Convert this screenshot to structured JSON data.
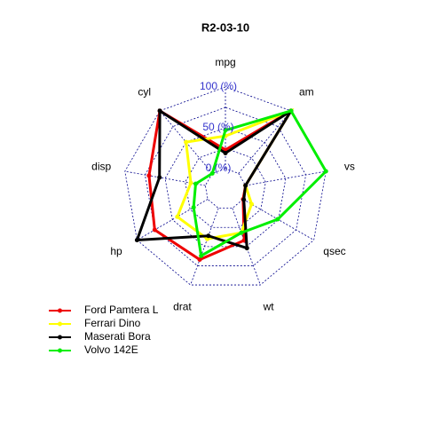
{
  "chart_data": {
    "type": "radar",
    "title": "R2-03-10",
    "categories": [
      "mpg",
      "cyl",
      "disp",
      "hp",
      "drat",
      "wt",
      "qsec",
      "vs",
      "am"
    ],
    "rlim": [
      0,
      100
    ],
    "segments": 4,
    "rticks": [
      {
        "value": 0,
        "label": "0 (%)"
      },
      {
        "value": 50,
        "label": "50 (%)"
      },
      {
        "value": 100,
        "label": "100 (%)"
      }
    ],
    "grid_color": "#00008b",
    "tick_label_color": "#3333cc",
    "legend_position": "bottom-left",
    "series": [
      {
        "name": "Ford Pamtera L",
        "color": "#ee0000",
        "values": [
          23,
          100,
          70,
          75,
          67,
          42,
          0,
          0,
          100
        ]
      },
      {
        "name": "Ferrari Dino",
        "color": "#ffff00",
        "values": [
          40,
          50,
          18,
          43,
          40,
          32,
          12,
          0,
          100
        ]
      },
      {
        "name": "Maserati Bora",
        "color": "#000000",
        "values": [
          19,
          100,
          57,
          100,
          36,
          52,
          1,
          0,
          100
        ]
      },
      {
        "name": "Volvo 142E",
        "color": "#00ee00",
        "values": [
          47,
          0,
          12,
          20,
          62,
          32,
          49,
          100,
          100
        ]
      }
    ]
  }
}
